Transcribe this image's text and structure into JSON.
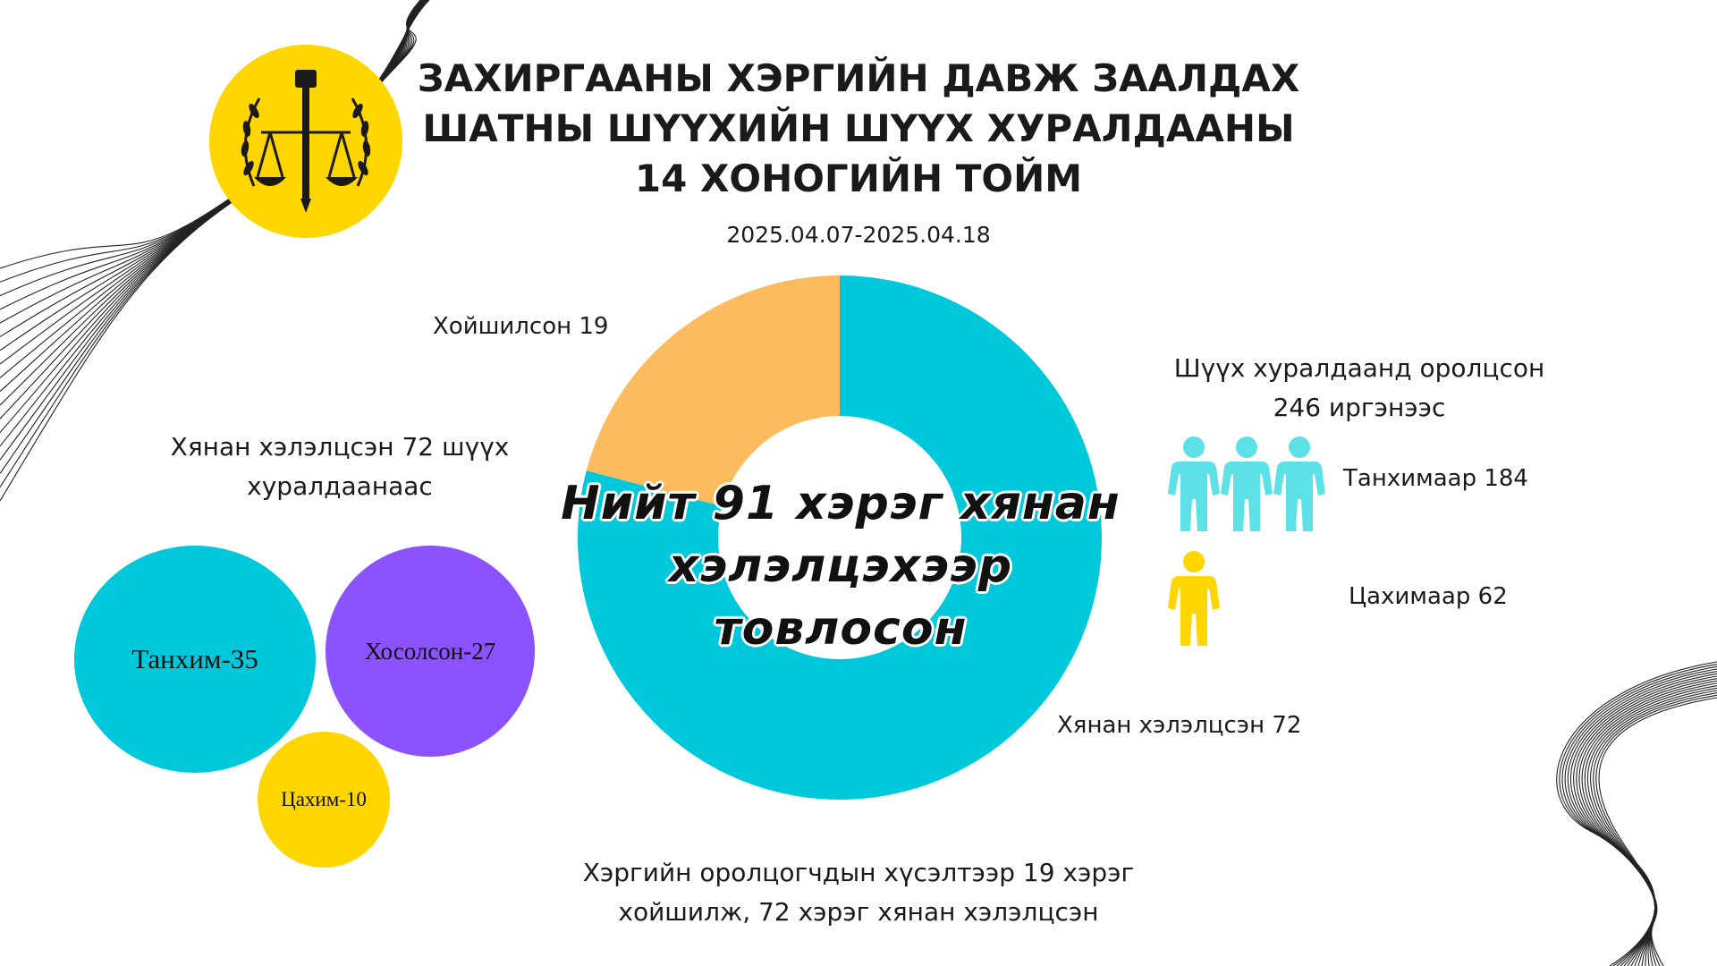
{
  "title": {
    "line1": "ЗАХИРГААНЫ ХЭРГИЙН ДАВЖ ЗААЛДАХ",
    "line2": "ШАТНЫ ШҮҮХИЙН ШҮҮХ ХУРАЛДААНЫ",
    "line3": "14 ХОНОГИЙН ТОЙМ"
  },
  "date_range": "2025.04.07-2025.04.18",
  "colors": {
    "cyan": "#00C8DB",
    "orange": "#FDBB5D",
    "purple": "#8C52FF",
    "yellow": "#FFD600",
    "light_cyan": "#5CE1E6"
  },
  "donut": {
    "center_line1": "Нийт 91 хэрэг хянан",
    "center_line2": "хэлэлцэхээр товлосон",
    "label_postponed": "Хойшилсон 19",
    "label_reviewed": "Хянан хэлэлцсэн 72"
  },
  "sessions": {
    "heading_line1": "Хянан хэлэлцсэн 72 шүүх",
    "heading_line2": "хуралдаанаас",
    "room": "Танхим-35",
    "mixed": "Хосолсон-27",
    "online": "Цахим-10"
  },
  "participants": {
    "heading_line1": "Шүүх хуралдаанд оролцсон",
    "heading_line2": "246 иргэнээс",
    "in_person": "Танхимаар 184",
    "online": "Цахимаар 62"
  },
  "footer": {
    "line1": "Хэргийн оролцогчдын хүсэлтээр 19 хэрэг",
    "line2": "хойшилж, 72 хэрэг хянан хэлэлцсэн"
  },
  "chart_data": [
    {
      "type": "pie",
      "style": "donut",
      "total": 91,
      "categories": [
        "Хянан хэлэлцсэн",
        "Хойшилсон"
      ],
      "values": [
        72,
        19
      ],
      "colors": [
        "#00C8DB",
        "#FDBB5D"
      ]
    },
    {
      "type": "bubble",
      "categories": [
        "Танхим",
        "Хосолсон",
        "Цахим"
      ],
      "values": [
        35,
        27,
        10
      ],
      "colors": [
        "#00C8DB",
        "#8C52FF",
        "#FFD600"
      ]
    },
    {
      "type": "pictogram",
      "categories": [
        "Танхимаар",
        "Цахимаар"
      ],
      "values": [
        184,
        62
      ],
      "total": 246,
      "colors": [
        "#5CE1E6",
        "#FFD600"
      ]
    }
  ]
}
